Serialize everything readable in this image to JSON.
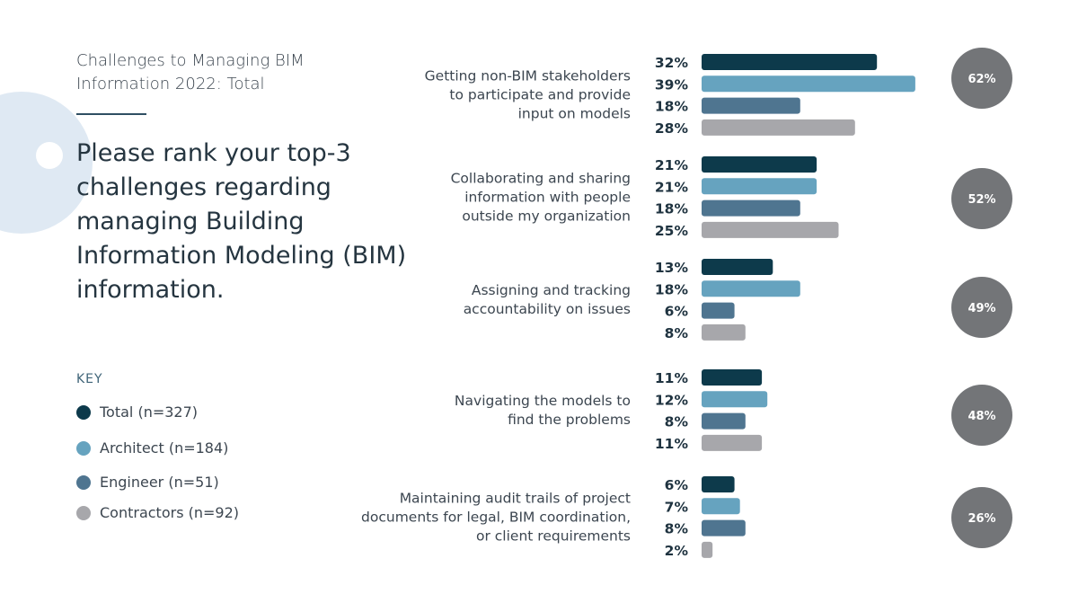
{
  "header": {
    "subtitle": "Challenges to Managing BIM Information 2022: Total",
    "question": "Please rank your top-3 challenges regarding managing Building Information Modeling (BIM) information."
  },
  "key": {
    "title": "KEY",
    "items": [
      {
        "label": "Total (n=327)",
        "color": "#0d3a4b"
      },
      {
        "label": "Architect (n=184)",
        "color": "#66a3bf"
      },
      {
        "label": "Engineer (n=51)",
        "color": "#4f7590"
      },
      {
        "label": "Contractors (n=92)",
        "color": "#a7a7ab"
      }
    ]
  },
  "chart_data": {
    "type": "bar",
    "orientation": "horizontal",
    "unit": "%",
    "categories": [
      [
        "Getting non-BIM stakeholders",
        "to participate and provide",
        "input on models"
      ],
      [
        "Collaborating and sharing",
        "information with people",
        "outside my organization"
      ],
      [
        "Assigning and tracking",
        "accountability on issues"
      ],
      [
        "Navigating the models to",
        "find the problems"
      ],
      [
        "Maintaining audit trails of project",
        "documents for legal, BIM coordination,",
        "or client requirements"
      ]
    ],
    "series": [
      {
        "name": "Total (n=327)",
        "color": "#0d3a4b",
        "values": [
          32,
          21,
          13,
          11,
          6
        ]
      },
      {
        "name": "Architect (n=184)",
        "color": "#66a3bf",
        "values": [
          39,
          21,
          18,
          12,
          7
        ]
      },
      {
        "name": "Engineer (n=51)",
        "color": "#4f7590",
        "values": [
          18,
          18,
          6,
          8,
          8
        ]
      },
      {
        "name": "Contractors (n=92)",
        "color": "#a7a7ab",
        "values": [
          28,
          25,
          8,
          11,
          2
        ]
      }
    ],
    "circle_values": [
      "62%",
      "52%",
      "49%",
      "48%",
      "26%"
    ],
    "circle_color": "#737578",
    "grid": false,
    "legend": "left"
  }
}
